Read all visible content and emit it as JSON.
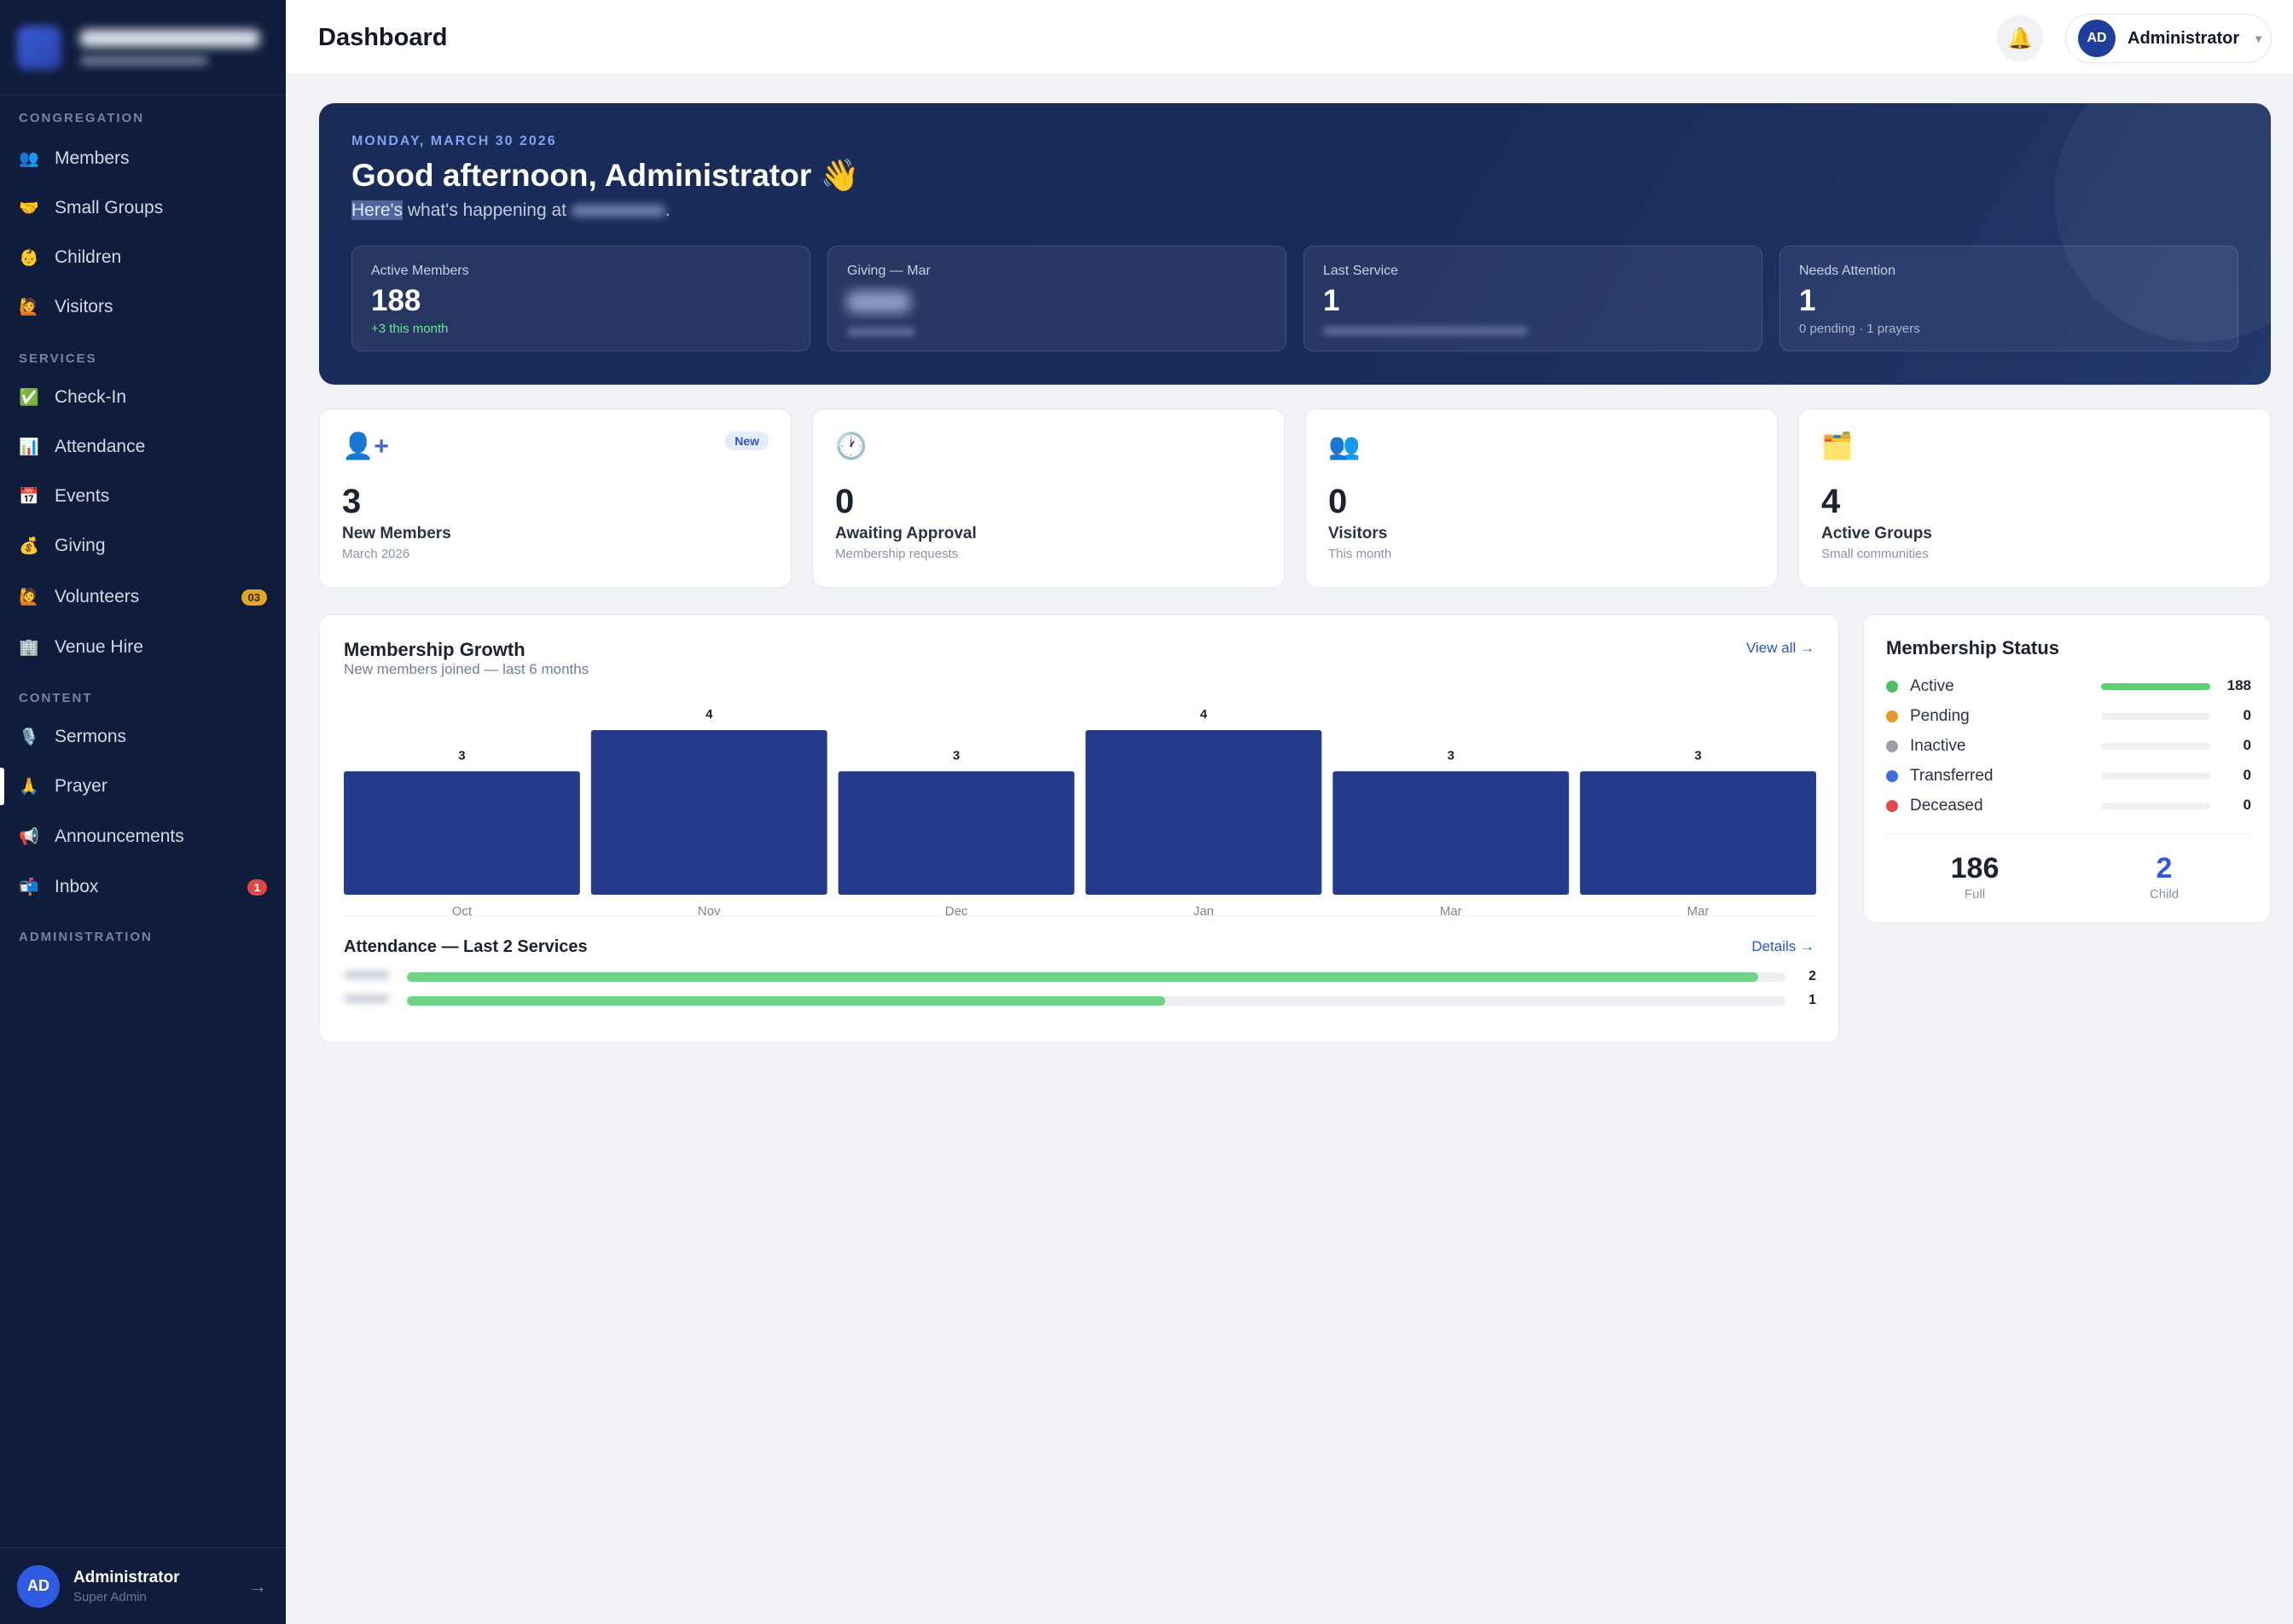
{
  "sidebar": {
    "sections": [
      {
        "title": "CONGREGATION",
        "items": [
          {
            "icon": "👥",
            "label": "Members"
          },
          {
            "icon": "🤝",
            "label": "Small Groups"
          },
          {
            "icon": "👶",
            "label": "Children"
          },
          {
            "icon": "🙋",
            "label": "Visitors"
          }
        ]
      },
      {
        "title": "SERVICES",
        "items": [
          {
            "icon": "✅",
            "label": "Check-In"
          },
          {
            "icon": "📊",
            "label": "Attendance"
          },
          {
            "icon": "📅",
            "label": "Events"
          },
          {
            "icon": "💰",
            "label": "Giving"
          },
          {
            "icon": "🙋",
            "label": "Volunteers",
            "badge": "03"
          },
          {
            "icon": "🏢",
            "label": "Venue Hire"
          }
        ]
      },
      {
        "title": "CONTENT",
        "items": [
          {
            "icon": "🎙️",
            "label": "Sermons"
          },
          {
            "icon": "🙏",
            "label": "Prayer"
          },
          {
            "icon": "📢",
            "label": "Announcements"
          },
          {
            "icon": "📬",
            "label": "Inbox",
            "badge": "1"
          }
        ]
      },
      {
        "title": "ADMINISTRATION",
        "items": []
      }
    ],
    "user": {
      "initials": "AD",
      "name": "Administrator",
      "role": "Super Admin",
      "logout_icon": "→"
    }
  },
  "topbar": {
    "title": "Dashboard",
    "bell_icon": "🔔",
    "user": {
      "initials": "AD",
      "name": "Administrator",
      "caret": "▼"
    }
  },
  "hero": {
    "date": "MONDAY, MARCH 30 2026",
    "greeting": "Good afternoon, Administrator 👋",
    "sub_highlight": "Here's",
    "sub_text": " what's happening at ",
    "sub_end": ".",
    "stats": [
      {
        "label": "Active Members",
        "value": "188",
        "foot": "+3 this month"
      },
      {
        "label": "Giving — Mar"
      },
      {
        "label": "Last Service",
        "value": "1"
      },
      {
        "label": "Needs Attention",
        "value": "1",
        "foot": "0 pending · 1 prayers"
      }
    ]
  },
  "kpis": [
    {
      "icon": "👤+",
      "number": "3",
      "title": "New Members",
      "sub": "March 2026",
      "badge": "New"
    },
    {
      "icon": "🕐",
      "number": "0",
      "title": "Awaiting Approval",
      "sub": "Membership requests"
    },
    {
      "icon": "👥",
      "number": "0",
      "title": "Visitors",
      "sub": "This month"
    },
    {
      "icon": "🗂️",
      "number": "4",
      "title": "Active Groups",
      "sub": "Small communities"
    }
  ],
  "growth": {
    "title": "Membership Growth",
    "subtitle": "New members joined — last 6 months",
    "link": "View all →",
    "attendance_title": "Attendance — Last 2 Services",
    "attendance_link": "Details →",
    "attendance": [
      {
        "value": "2",
        "fraction": 0.98
      },
      {
        "value": "1",
        "fraction": 0.55
      }
    ]
  },
  "chart_data": {
    "type": "bar",
    "categories": [
      "Oct",
      "Nov",
      "Dec",
      "Jan",
      "Mar",
      "Mar"
    ],
    "values": [
      3,
      4,
      3,
      4,
      3,
      3
    ],
    "color": "#253a8a"
  },
  "status": {
    "title": "Membership Status",
    "rows": [
      {
        "label": "Active",
        "value": "188",
        "color": "#4fbf63",
        "fraction": 1.0
      },
      {
        "label": "Pending",
        "value": "0",
        "color": "#e59a2f",
        "fraction": 0
      },
      {
        "label": "Inactive",
        "value": "0",
        "color": "#9aa1ad",
        "fraction": 0
      },
      {
        "label": "Transferred",
        "value": "0",
        "color": "#3b6fe0",
        "fraction": 0
      },
      {
        "label": "Deceased",
        "value": "0",
        "color": "#e04a4a",
        "fraction": 0
      }
    ],
    "summary": [
      {
        "value": "186",
        "label": "Full",
        "color": "#1b2330"
      },
      {
        "value": "2",
        "label": "Child",
        "color": "#2f5be0"
      }
    ]
  }
}
